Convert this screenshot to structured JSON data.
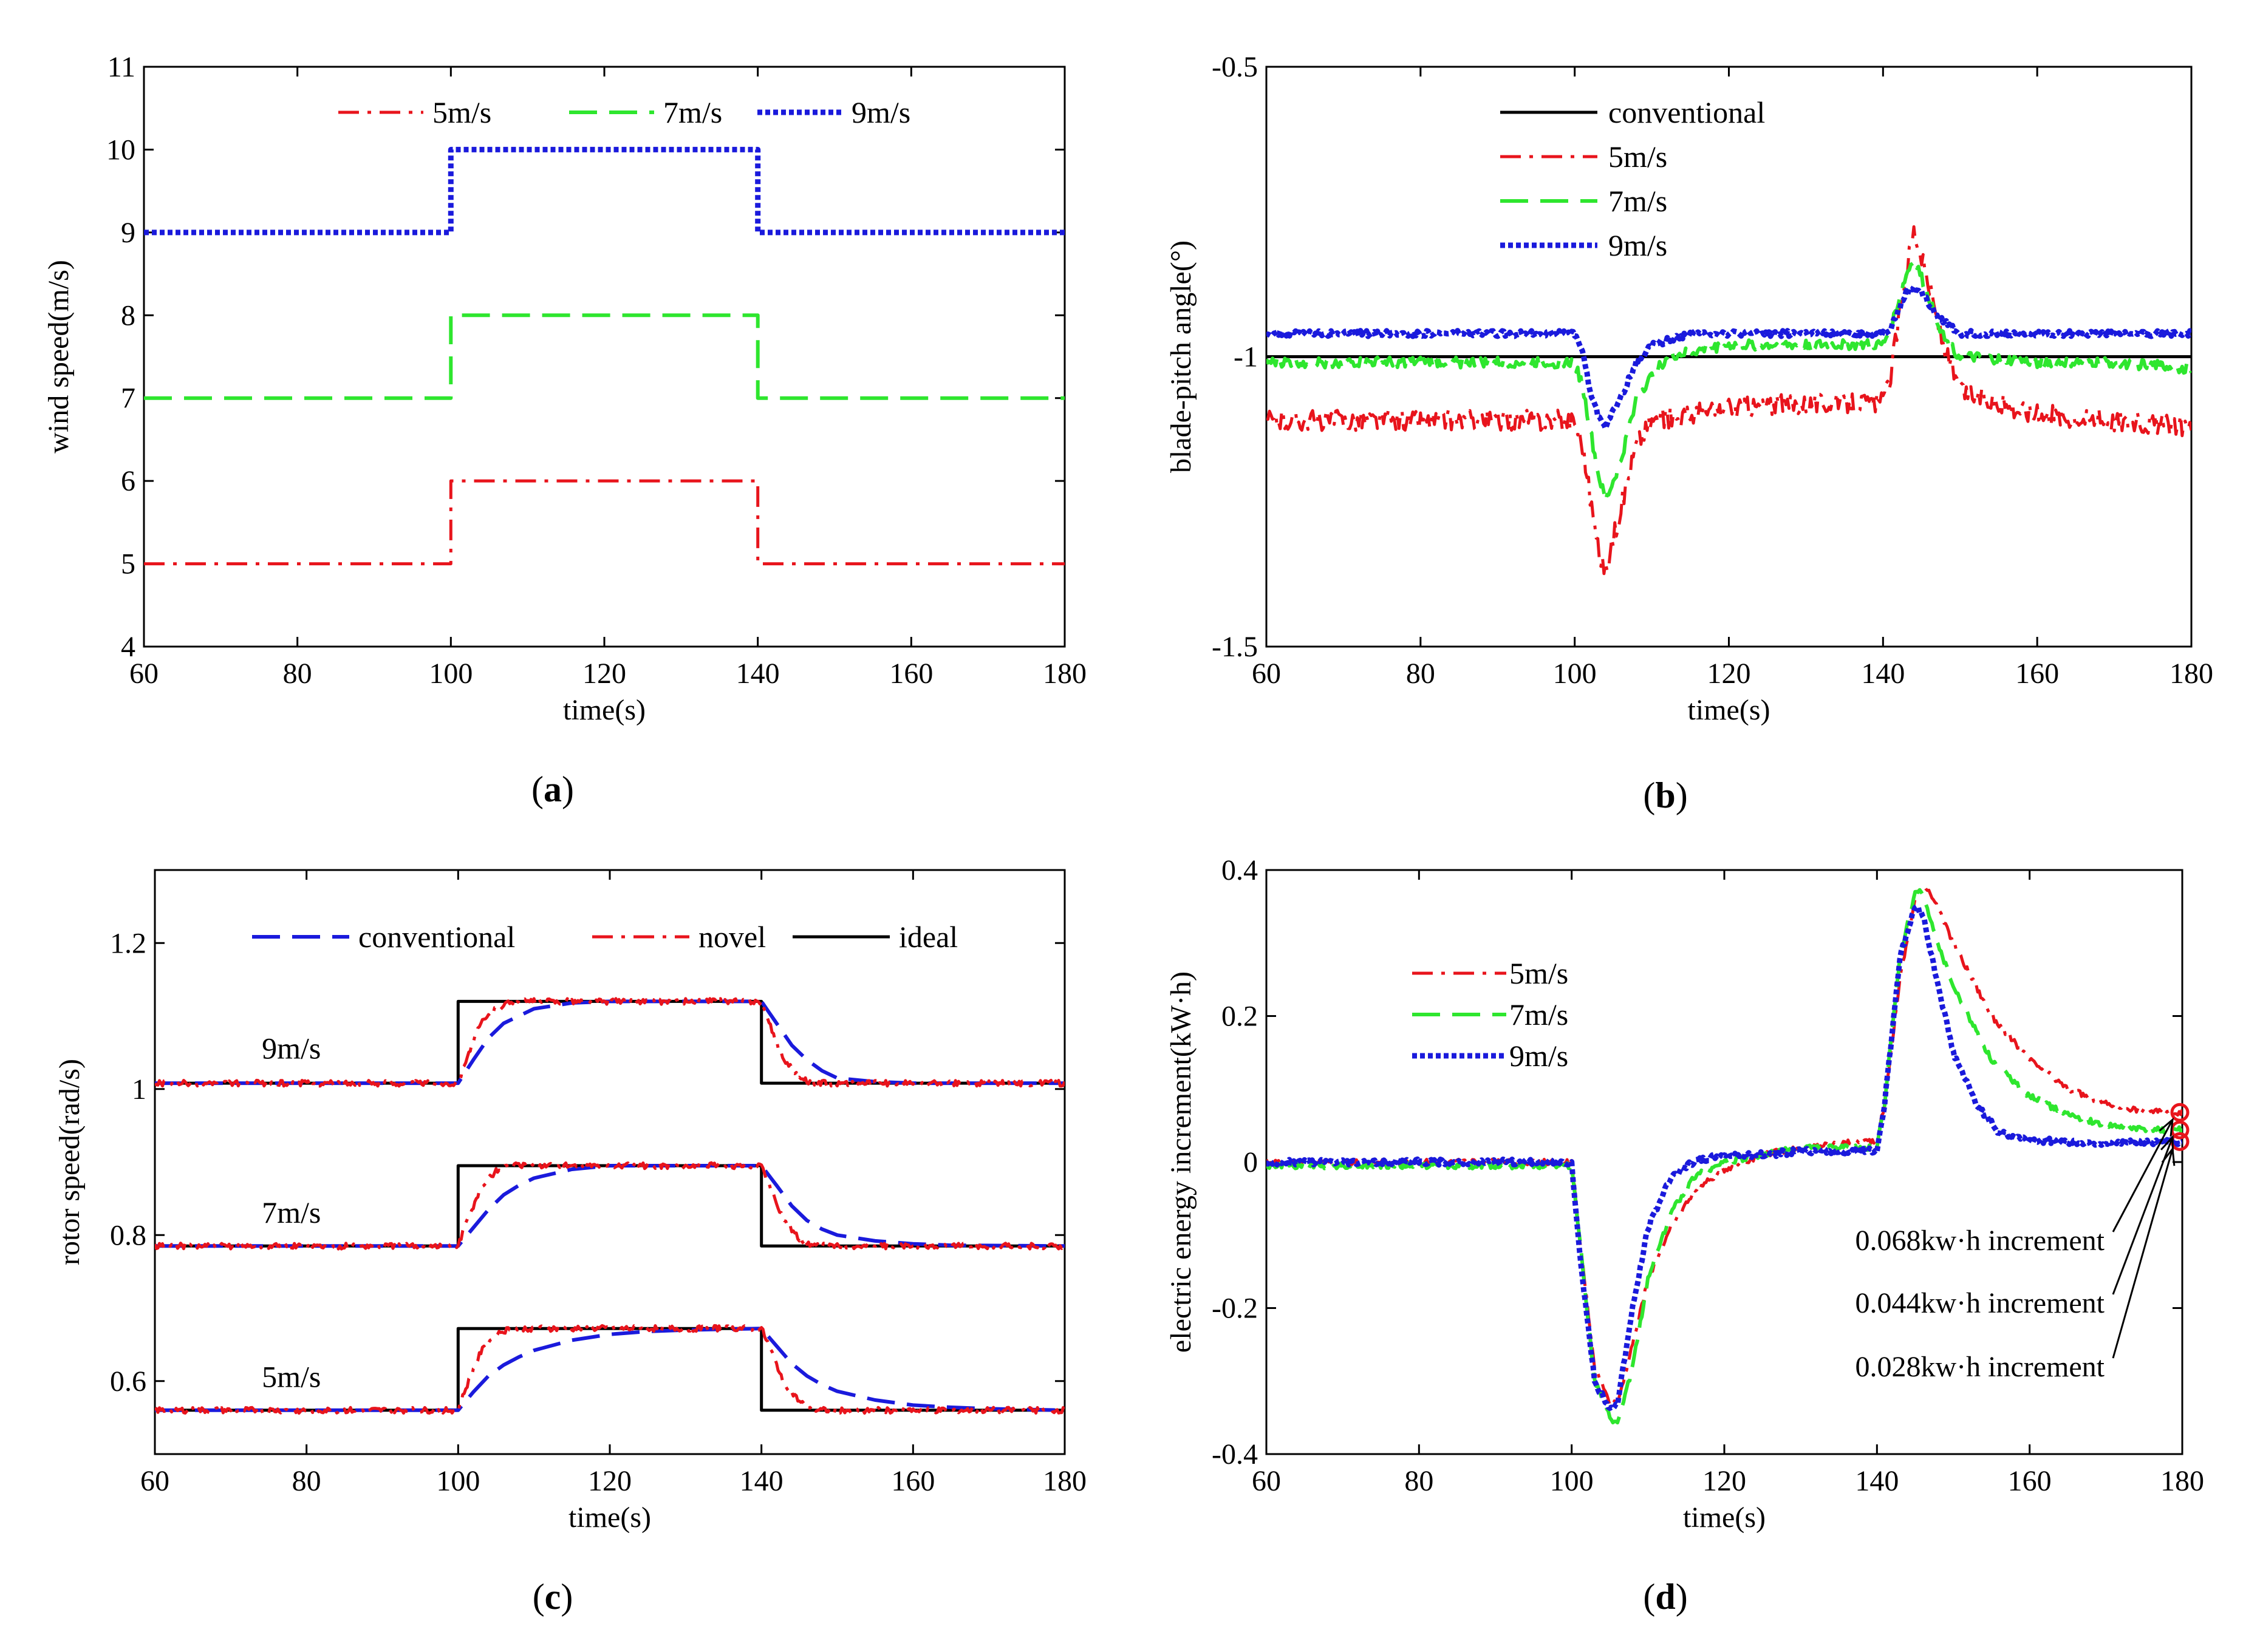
{
  "figure": {
    "colors": {
      "red": "#e8141c",
      "green": "#2ee62e",
      "blue": "#1a1adc",
      "black": "#000000"
    }
  },
  "chart_data": [
    {
      "id": "a",
      "type": "line",
      "caption": "(a)",
      "caption_letter": "a",
      "xlabel": "time(s)",
      "ylabel": "wind speed(m/s)",
      "xlim": [
        60,
        180
      ],
      "ylim": [
        4,
        11
      ],
      "xticks": [
        60,
        80,
        100,
        120,
        140,
        160,
        180
      ],
      "yticks": [
        4,
        5,
        6,
        7,
        8,
        9,
        10,
        11
      ],
      "legend": {
        "placement": "top",
        "layout": "row"
      },
      "series": [
        {
          "name": "5m/s",
          "color": "#e8141c",
          "style": "dashdot",
          "x": [
            60,
            100,
            100,
            140,
            140,
            180
          ],
          "y": [
            5,
            5,
            6,
            6,
            5,
            5
          ]
        },
        {
          "name": "7m/s",
          "color": "#2ee62e",
          "style": "dashed",
          "x": [
            60,
            100,
            100,
            140,
            140,
            180
          ],
          "y": [
            7,
            7,
            8,
            8,
            7,
            7
          ]
        },
        {
          "name": "9m/s",
          "color": "#1a1adc",
          "style": "dotted",
          "x": [
            60,
            100,
            100,
            140,
            140,
            180
          ],
          "y": [
            9,
            9,
            10,
            10,
            9,
            9
          ]
        }
      ]
    },
    {
      "id": "b",
      "type": "line",
      "caption": "(b)",
      "caption_letter": "b",
      "xlabel": "time(s)",
      "ylabel": "blade-pitch angle(°)",
      "xlim": [
        60,
        180
      ],
      "ylim": [
        -1.5,
        -0.5
      ],
      "xticks": [
        60,
        80,
        100,
        120,
        140,
        160,
        180
      ],
      "yticks": [
        -1.5,
        -1,
        -0.5
      ],
      "legend": {
        "placement": "top-left",
        "layout": "column"
      },
      "series": [
        {
          "name": "conventional",
          "color": "#000000",
          "style": "solid",
          "noise": 0,
          "x": [
            60,
            180
          ],
          "y": [
            -1.0,
            -1.0
          ]
        },
        {
          "name": "5m/s",
          "color": "#e8141c",
          "style": "dashdot",
          "noise": 0.018,
          "x": [
            60,
            100,
            101,
            103,
            104,
            106,
            108,
            110,
            115,
            120,
            130,
            140,
            141,
            143,
            144,
            146,
            148,
            150,
            160,
            170,
            180
          ],
          "y": [
            -1.11,
            -1.11,
            -1.15,
            -1.33,
            -1.37,
            -1.26,
            -1.15,
            -1.11,
            -1.1,
            -1.09,
            -1.08,
            -1.08,
            -1.03,
            -0.85,
            -0.78,
            -0.88,
            -0.99,
            -1.06,
            -1.1,
            -1.11,
            -1.12
          ]
        },
        {
          "name": "7m/s",
          "color": "#2ee62e",
          "style": "dashed",
          "noise": 0.009,
          "x": [
            60,
            100,
            101,
            103,
            104,
            106,
            108,
            112,
            120,
            130,
            140,
            141,
            143,
            144,
            146,
            148,
            150,
            160,
            170,
            180
          ],
          "y": [
            -1.01,
            -1.01,
            -1.05,
            -1.2,
            -1.25,
            -1.18,
            -1.07,
            -1.0,
            -0.98,
            -0.98,
            -0.98,
            -0.95,
            -0.86,
            -0.83,
            -0.9,
            -0.97,
            -1.0,
            -1.01,
            -1.01,
            -1.02
          ]
        },
        {
          "name": "9m/s",
          "color": "#1a1adc",
          "style": "dotted",
          "noise": 0.005,
          "x": [
            60,
            100,
            101,
            102,
            103,
            104,
            106,
            108,
            110,
            115,
            120,
            130,
            140,
            141,
            142,
            143,
            144,
            145,
            147,
            150,
            155,
            160,
            170,
            180
          ],
          "y": [
            -0.96,
            -0.96,
            -0.99,
            -1.06,
            -1.1,
            -1.12,
            -1.07,
            -1.01,
            -0.98,
            -0.96,
            -0.96,
            -0.96,
            -0.96,
            -0.95,
            -0.92,
            -0.89,
            -0.88,
            -0.89,
            -0.93,
            -0.96,
            -0.96,
            -0.96,
            -0.96,
            -0.96
          ]
        }
      ]
    },
    {
      "id": "c",
      "type": "line",
      "caption": "(c)",
      "caption_letter": "c",
      "xlabel": "time(s)",
      "ylabel": "rotor speed(rad/s)",
      "xlim": [
        60,
        180
      ],
      "ylim": [
        0.5,
        1.3
      ],
      "xticks": [
        60,
        80,
        100,
        120,
        140,
        160,
        180
      ],
      "yticks": [
        0.6,
        0.8,
        1,
        1.2
      ],
      "legend": {
        "placement": "top",
        "layout": "row"
      },
      "series_legend": [
        {
          "name": "conventional",
          "color": "#1a1adc",
          "style": "dashed"
        },
        {
          "name": "novel",
          "color": "#e8141c",
          "style": "dashdot"
        },
        {
          "name": "ideal",
          "color": "#000000",
          "style": "solid"
        }
      ],
      "groups": [
        {
          "label": "9m/s",
          "label_x": 78,
          "label_y": 1.055,
          "low": 1.008,
          "high": 1.12
        },
        {
          "label": "7m/s",
          "label_x": 78,
          "label_y": 0.83,
          "low": 0.785,
          "high": 0.895
        },
        {
          "label": "5m/s",
          "label_x": 78,
          "label_y": 0.605,
          "low": 0.56,
          "high": 0.672
        }
      ],
      "series": [
        {
          "name": "ideal",
          "group": "9m/s",
          "color": "#000000",
          "style": "solid",
          "x": [
            60,
            100,
            100,
            140,
            140,
            180
          ],
          "y": [
            1.008,
            1.008,
            1.12,
            1.12,
            1.008,
            1.008
          ]
        },
        {
          "name": "conventional",
          "group": "9m/s",
          "color": "#1a1adc",
          "style": "dashed",
          "x": [
            60,
            100,
            102,
            104,
            106,
            108,
            110,
            115,
            120,
            140,
            142,
            144,
            146,
            148,
            150,
            155,
            160,
            180
          ],
          "y": [
            1.008,
            1.008,
            1.04,
            1.07,
            1.09,
            1.1,
            1.11,
            1.118,
            1.12,
            1.12,
            1.09,
            1.06,
            1.04,
            1.025,
            1.015,
            1.01,
            1.008,
            1.008
          ]
        },
        {
          "name": "novel",
          "group": "9m/s",
          "color": "#e8141c",
          "style": "dashdot",
          "noise": 0.004,
          "x": [
            60,
            100,
            101,
            103,
            105,
            107,
            110,
            140,
            141,
            143,
            145,
            147,
            150,
            180
          ],
          "y": [
            1.008,
            1.008,
            1.04,
            1.09,
            1.11,
            1.12,
            1.12,
            1.12,
            1.09,
            1.04,
            1.015,
            1.008,
            1.008,
            1.008
          ]
        },
        {
          "name": "ideal",
          "group": "7m/s",
          "color": "#000000",
          "style": "solid",
          "x": [
            60,
            100,
            100,
            140,
            140,
            180
          ],
          "y": [
            0.785,
            0.785,
            0.895,
            0.895,
            0.785,
            0.785
          ]
        },
        {
          "name": "conventional",
          "group": "7m/s",
          "color": "#1a1adc",
          "style": "dashed",
          "x": [
            60,
            100,
            102,
            104,
            106,
            108,
            110,
            115,
            120,
            140,
            142,
            144,
            146,
            148,
            150,
            155,
            160,
            165,
            180
          ],
          "y": [
            0.785,
            0.785,
            0.81,
            0.835,
            0.855,
            0.868,
            0.878,
            0.89,
            0.895,
            0.895,
            0.868,
            0.84,
            0.82,
            0.808,
            0.8,
            0.792,
            0.788,
            0.786,
            0.785
          ]
        },
        {
          "name": "novel",
          "group": "7m/s",
          "color": "#e8141c",
          "style": "dashdot",
          "noise": 0.004,
          "x": [
            60,
            100,
            101,
            103,
            105,
            107,
            110,
            140,
            141,
            143,
            145,
            147,
            150,
            180
          ],
          "y": [
            0.785,
            0.785,
            0.815,
            0.865,
            0.888,
            0.895,
            0.895,
            0.895,
            0.87,
            0.82,
            0.795,
            0.785,
            0.785,
            0.785
          ]
        },
        {
          "name": "ideal",
          "group": "5m/s",
          "color": "#000000",
          "style": "solid",
          "x": [
            60,
            100,
            100,
            140,
            140,
            180
          ],
          "y": [
            0.56,
            0.56,
            0.672,
            0.672,
            0.56,
            0.56
          ]
        },
        {
          "name": "conventional",
          "group": "5m/s",
          "color": "#1a1adc",
          "style": "dashed",
          "x": [
            60,
            100,
            102,
            104,
            106,
            108,
            110,
            115,
            120,
            125,
            130,
            140,
            142,
            144,
            146,
            148,
            150,
            155,
            160,
            165,
            170,
            180
          ],
          "y": [
            0.56,
            0.56,
            0.585,
            0.607,
            0.622,
            0.633,
            0.642,
            0.656,
            0.664,
            0.668,
            0.67,
            0.672,
            0.648,
            0.624,
            0.607,
            0.595,
            0.586,
            0.574,
            0.567,
            0.564,
            0.562,
            0.56
          ]
        },
        {
          "name": "novel",
          "group": "5m/s",
          "color": "#e8141c",
          "style": "dashdot",
          "noise": 0.004,
          "x": [
            60,
            100,
            101,
            103,
            105,
            107,
            110,
            140,
            141,
            143,
            145,
            147,
            150,
            180
          ],
          "y": [
            0.56,
            0.56,
            0.59,
            0.64,
            0.665,
            0.672,
            0.672,
            0.672,
            0.648,
            0.598,
            0.572,
            0.56,
            0.56,
            0.56
          ]
        }
      ]
    },
    {
      "id": "d",
      "type": "line",
      "caption": "(d)",
      "caption_letter": "d",
      "xlabel": "time(s)",
      "ylabel": "electric energy increment(kW·h)",
      "xlim": [
        60,
        180
      ],
      "ylim": [
        -0.4,
        0.4
      ],
      "xticks": [
        60,
        80,
        100,
        120,
        140,
        160,
        180
      ],
      "yticks": [
        -0.4,
        -0.2,
        0,
        0.2,
        0.4
      ],
      "legend": {
        "placement": "upper-left",
        "layout": "column"
      },
      "series": [
        {
          "name": "5m/s",
          "legend_label": "5m/s",
          "color": "#e8141c",
          "style": "dashdot",
          "noise": 0.004,
          "x": [
            60,
            100,
            101,
            103,
            105,
            106,
            108,
            110,
            113,
            116,
            120,
            125,
            130,
            140,
            141,
            143,
            145,
            146,
            147,
            150,
            155,
            160,
            165,
            170,
            175,
            180
          ],
          "y": [
            0.0,
            0.0,
            -0.1,
            -0.28,
            -0.33,
            -0.33,
            -0.25,
            -0.16,
            -0.09,
            -0.04,
            -0.01,
            0.01,
            0.02,
            0.03,
            0.08,
            0.25,
            0.36,
            0.38,
            0.37,
            0.3,
            0.2,
            0.14,
            0.1,
            0.08,
            0.07,
            0.068
          ]
        },
        {
          "name": "7m/s",
          "legend_label": " 7m/s",
          "color": "#2ee62e",
          "style": "dashed",
          "noise": 0.004,
          "x": [
            60,
            100,
            101,
            103,
            105,
            106,
            108,
            110,
            113,
            116,
            120,
            125,
            130,
            140,
            141,
            143,
            145,
            146,
            147,
            150,
            155,
            160,
            165,
            170,
            175,
            180
          ],
          "y": [
            -0.005,
            -0.005,
            -0.1,
            -0.3,
            -0.35,
            -0.36,
            -0.28,
            -0.16,
            -0.07,
            -0.02,
            0.0,
            0.01,
            0.02,
            0.02,
            0.08,
            0.28,
            0.37,
            0.37,
            0.33,
            0.24,
            0.14,
            0.09,
            0.065,
            0.05,
            0.045,
            0.044
          ]
        },
        {
          "name": "9m/s",
          "legend_label": "9m/s",
          "color": "#1a1adc",
          "style": "dotted",
          "noise": 0.004,
          "x": [
            60,
            100,
            101,
            103,
            105,
            106,
            108,
            110,
            113,
            116,
            120,
            125,
            130,
            140,
            141,
            143,
            145,
            146,
            147,
            150,
            153,
            156,
            160,
            165,
            170,
            175,
            180
          ],
          "y": [
            0.0,
            0.0,
            -0.12,
            -0.3,
            -0.34,
            -0.33,
            -0.2,
            -0.09,
            -0.02,
            0.0,
            0.01,
            0.01,
            0.015,
            0.015,
            0.08,
            0.28,
            0.35,
            0.34,
            0.29,
            0.15,
            0.08,
            0.04,
            0.03,
            0.028,
            0.025,
            0.027,
            0.028
          ]
        }
      ],
      "end_markers": [
        {
          "x": 180,
          "y": 0.068,
          "color": "#e8141c"
        },
        {
          "x": 180,
          "y": 0.044,
          "color": "#e8141c"
        },
        {
          "x": 180,
          "y": 0.028,
          "color": "#e8141c"
        }
      ],
      "annotations": [
        {
          "text": "0.068kw·h increment",
          "target": 0.068
        },
        {
          "text": "0.044kw·h increment",
          "target": 0.044
        },
        {
          "text": "0.028kw·h increment",
          "target": 0.028
        }
      ]
    }
  ]
}
